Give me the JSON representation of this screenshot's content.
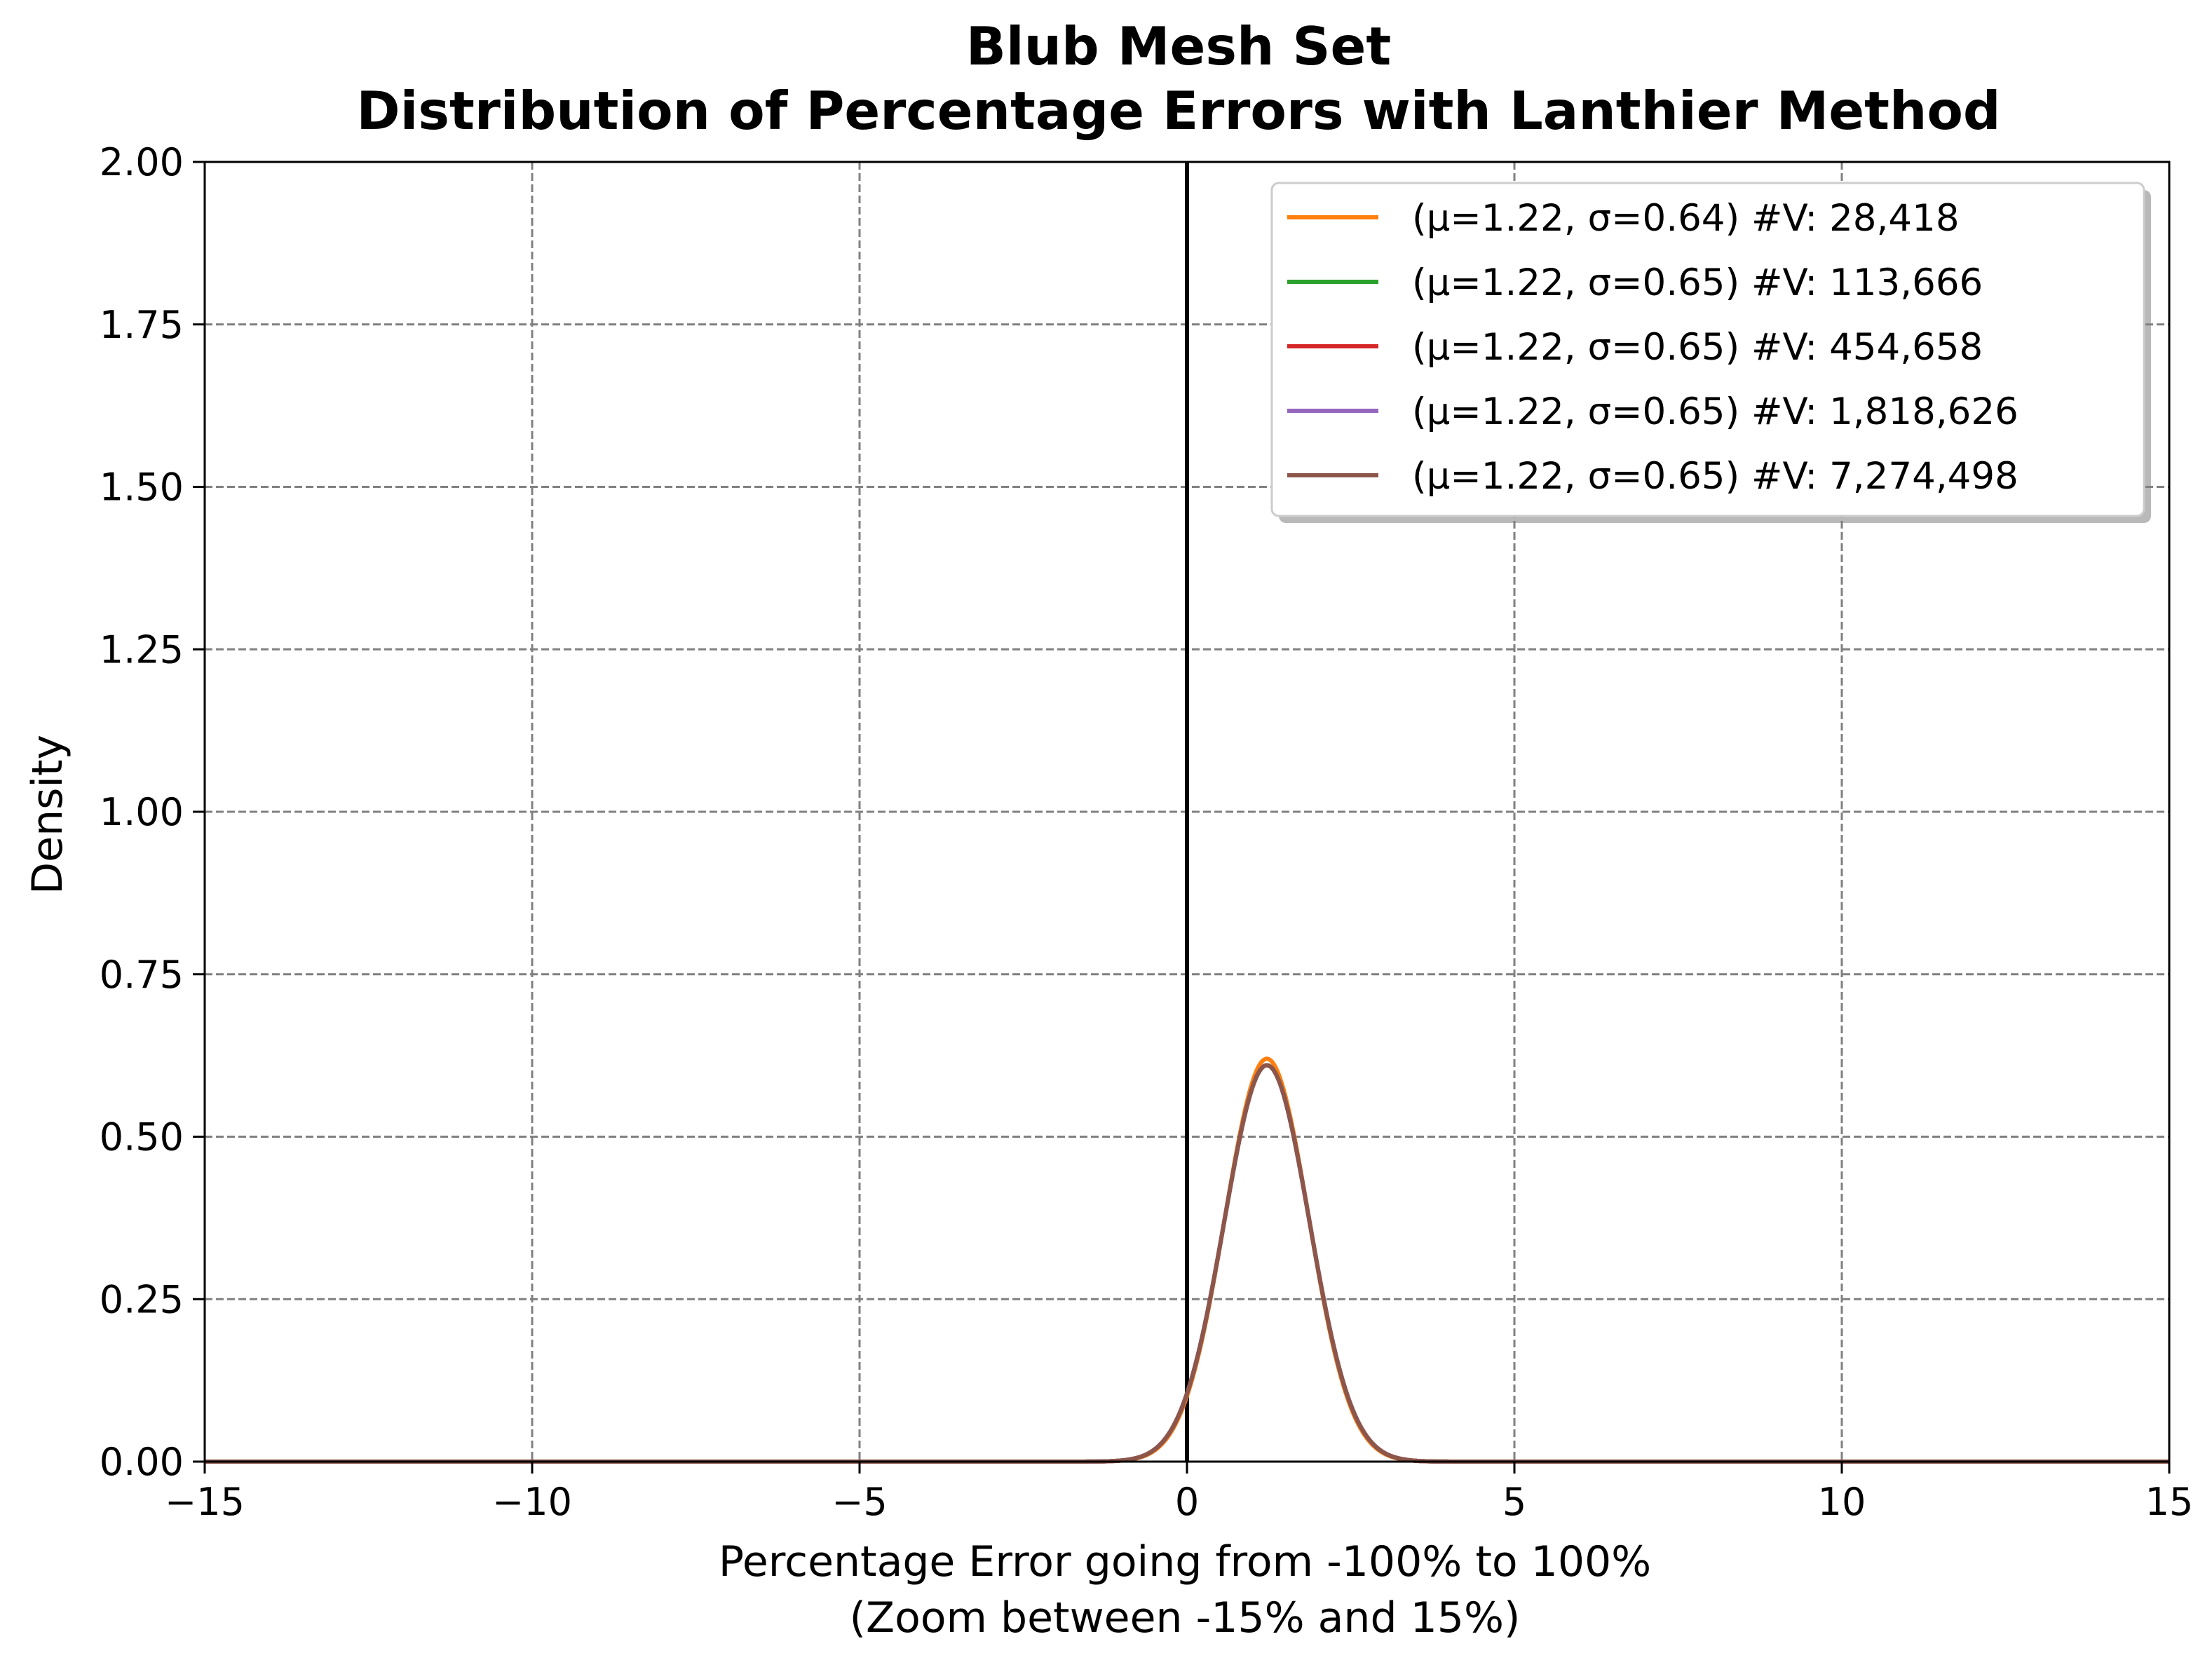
{
  "chart_data": {
    "type": "line",
    "title": [
      "Blub Mesh Set",
      "Distribution of Percentage Errors with Lanthier Method"
    ],
    "xlabel": [
      "Percentage Error going from -100% to 100%",
      "(Zoom between -15% and 15%)"
    ],
    "ylabel": "Density",
    "xlim": [
      -15,
      15
    ],
    "ylim": [
      0,
      2
    ],
    "x_ticks": [
      -15,
      -10,
      -5,
      0,
      5,
      10,
      15
    ],
    "x_tick_labels": [
      "−15",
      "−10",
      "−5",
      "0",
      "5",
      "10",
      "15"
    ],
    "y_ticks": [
      0,
      0.25,
      0.5,
      0.75,
      1.0,
      1.25,
      1.5,
      1.75,
      2.0
    ],
    "y_tick_labels": [
      "0.00",
      "0.25",
      "0.50",
      "0.75",
      "1.00",
      "1.25",
      "1.50",
      "1.75",
      "2.00"
    ],
    "grid": true,
    "reference_line_x": 0,
    "legend_position": "top-right",
    "series": [
      {
        "name": "(μ=1.22, σ=0.64) #V: 28,418",
        "color": "#ff7f0e",
        "mean": 1.22,
        "std": 0.64,
        "peak_density": 0.62
      },
      {
        "name": "(μ=1.22, σ=0.65) #V: 113,666",
        "color": "#2ca02c",
        "mean": 1.22,
        "std": 0.65,
        "peak_density": 0.61
      },
      {
        "name": "(μ=1.22, σ=0.65) #V: 454,658",
        "color": "#d62728",
        "mean": 1.22,
        "std": 0.65,
        "peak_density": 0.61
      },
      {
        "name": "(μ=1.22, σ=0.65) #V: 1,818,626",
        "color": "#9467bd",
        "mean": 1.22,
        "std": 0.65,
        "peak_density": 0.61
      },
      {
        "name": "(μ=1.22, σ=0.65) #V: 7,274,498",
        "color": "#8c564b",
        "mean": 1.22,
        "std": 0.65,
        "peak_density": 0.61
      }
    ]
  }
}
